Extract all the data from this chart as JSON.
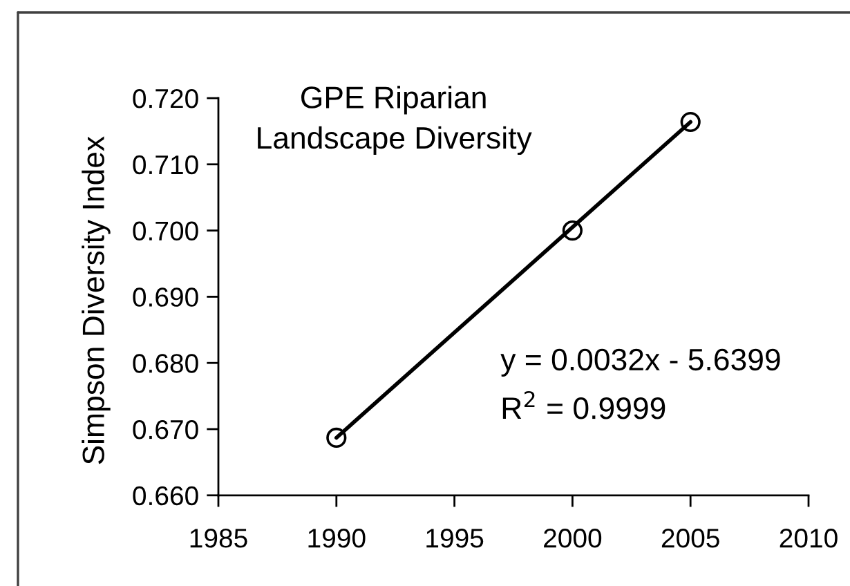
{
  "chart_data": {
    "type": "scatter",
    "title": "GPE Riparian\nLandscape Diversity",
    "ylabel": "Simpson Diversity Index",
    "x": [
      1990,
      2000,
      2005
    ],
    "series": [
      {
        "color": "#000000",
        "values": [
          0.6687,
          0.7,
          0.7164
        ],
        "marker": "circle"
      },
      {
        "type": "line",
        "x": [
          1990,
          2005
        ],
        "values": [
          0.6687,
          0.7164
        ],
        "color": "#000000",
        "marker": "none",
        "line_style": "solid"
      }
    ],
    "xlim": [
      1985,
      2010
    ],
    "xticks": [
      1985,
      1990,
      1995,
      2000,
      2005,
      2010
    ],
    "ylim": [
      0.66,
      0.72
    ],
    "yticks": [
      {
        "value": 0.66,
        "label": "0.660"
      },
      {
        "value": 0.67,
        "label": "0.670"
      },
      {
        "value": 0.68,
        "label": "0.680"
      },
      {
        "value": 0.69,
        "label": "0.690"
      },
      {
        "value": 0.7,
        "label": "0.700"
      },
      {
        "value": 0.71,
        "label": "0.710"
      },
      {
        "value": 0.72,
        "label": "0.720"
      }
    ],
    "annotations": [
      "y = 0.0032x - 5.6399",
      "R$^{2}$ = 0.9999"
    ],
    "grid": false,
    "legend": false
  }
}
